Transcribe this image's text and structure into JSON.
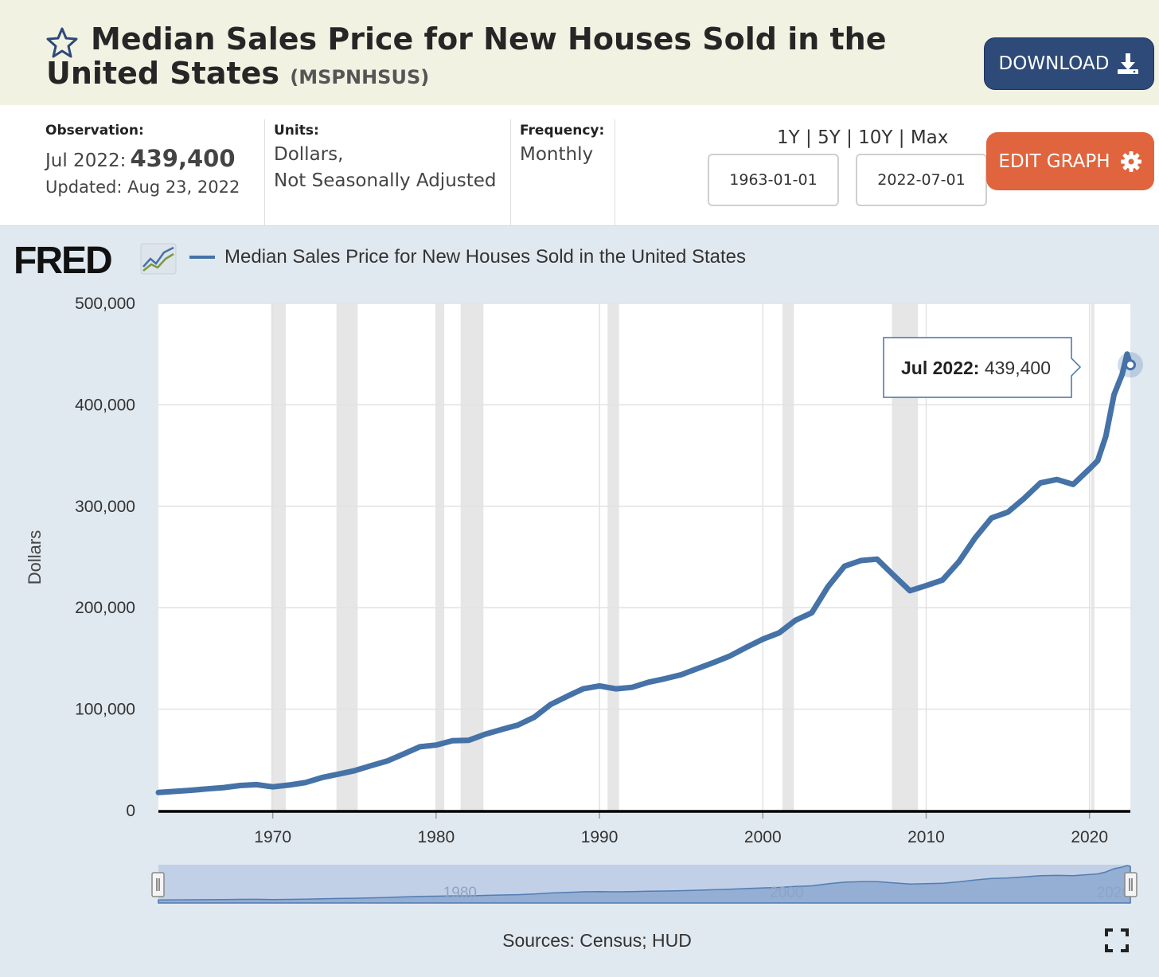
{
  "header": {
    "title": "Median Sales Price for New Houses Sold in the United States",
    "series_id": "(MSPNHSUS)",
    "download_label": "DOWNLOAD"
  },
  "meta": {
    "observation_label": "Observation:",
    "observation_date": "Jul 2022:",
    "observation_value": "439,400",
    "updated": "Updated: Aug 23, 2022",
    "units_label": "Units:",
    "units_line1": "Dollars,",
    "units_line2": "Not Seasonally Adjusted",
    "frequency_label": "Frequency:",
    "frequency_value": "Monthly"
  },
  "controls": {
    "range_links": [
      "1Y",
      "5Y",
      "10Y",
      "Max"
    ],
    "range_separator": "|",
    "start_date": "1963-01-01",
    "end_date": "2022-07-01",
    "edit_label": "EDIT GRAPH"
  },
  "logo": {
    "text": "FRED"
  },
  "tooltip": {
    "date": "Jul 2022:",
    "value": "439,400"
  },
  "sources": "Sources: Census; HUD",
  "colors": {
    "series": "#4572a7",
    "recession": "#e6e6e6",
    "download_button": "#2d4a78",
    "edit_button": "#e0643d",
    "page_background": "#e1e9f0"
  },
  "icons": {
    "star": "star-icon",
    "download": "download-icon",
    "edit": "gear-icon",
    "fullscreen": "fullscreen-icon"
  },
  "chart_data": {
    "type": "line",
    "title": "",
    "xlabel": "",
    "ylabel": "Dollars",
    "xlim": [
      1963.0,
      2022.5
    ],
    "ylim": [
      0,
      500000
    ],
    "x_ticks": [
      1970,
      1980,
      1990,
      2000,
      2010,
      2020
    ],
    "y_ticks": [
      0,
      100000,
      200000,
      300000,
      400000,
      500000
    ],
    "y_tick_labels": [
      "0",
      "100,000",
      "200,000",
      "300,000",
      "400,000",
      "500,000"
    ],
    "grid": true,
    "legend": "top-left",
    "series": [
      {
        "name": "Median Sales Price for New Houses Sold in the United States",
        "x": [
          1963.0,
          1964,
          1965,
          1966,
          1967,
          1968,
          1969,
          1970,
          1971,
          1972,
          1973,
          1974,
          1975,
          1976,
          1977,
          1978,
          1979,
          1980,
          1981,
          1982,
          1983,
          1984,
          1985,
          1986,
          1987,
          1988,
          1989,
          1990,
          1991,
          1992,
          1993,
          1994,
          1995,
          1996,
          1997,
          1998,
          1999,
          2000,
          2001,
          2002,
          2003,
          2004,
          2005,
          2006,
          2007,
          2008,
          2009,
          2010,
          2011,
          2012,
          2013,
          2014,
          2015,
          2016,
          2017,
          2018,
          2019,
          2020,
          2020.5,
          2021,
          2021.5,
          2022.0,
          2022.3,
          2022.5
        ],
        "y": [
          17800,
          18900,
          20000,
          21400,
          22700,
          24700,
          25600,
          23400,
          25200,
          27600,
          32500,
          35900,
          39300,
          44200,
          48800,
          55700,
          62900,
          64600,
          68900,
          69300,
          75300,
          79900,
          84300,
          92000,
          104500,
          112500,
          120000,
          122900,
          120000,
          121500,
          126500,
          130000,
          133900,
          140000,
          146000,
          152500,
          161000,
          169000,
          175200,
          187600,
          195000,
          221000,
          240900,
          246500,
          247900,
          232100,
          216700,
          221800,
          227200,
          245200,
          268900,
          288500,
          294200,
          307800,
          323100,
          326400,
          321500,
          336900,
          345000,
          369000,
          410000,
          430000,
          450000,
          439400
        ]
      }
    ],
    "recessions": [
      [
        1969.9,
        1970.8
      ],
      [
        1973.9,
        1975.2
      ],
      [
        1980.0,
        1980.5
      ],
      [
        1981.5,
        1982.9
      ],
      [
        1990.5,
        1991.2
      ],
      [
        2001.2,
        2001.9
      ],
      [
        2007.9,
        2009.5
      ],
      [
        2020.1,
        2020.3
      ]
    ],
    "navigator": {
      "tick_labels": [
        "1980",
        "2000",
        "2020"
      ]
    }
  }
}
